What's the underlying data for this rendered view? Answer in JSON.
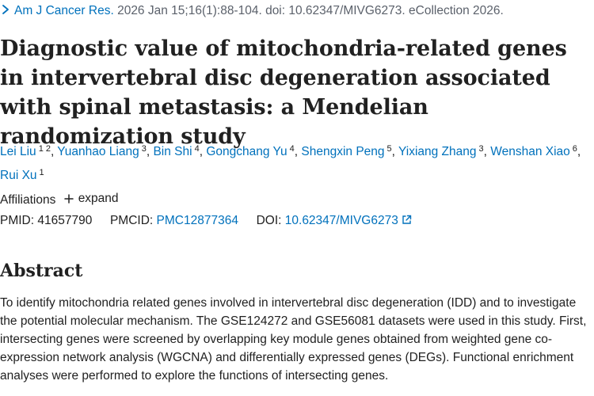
{
  "citation": {
    "journal": "Am J Cancer Res.",
    "details": " 2026 Jan 15;16(1):88-104. doi: 10.62347/MIVG6273. eCollection 2026."
  },
  "article": {
    "title": "Diagnostic value of mitochondria-related genes in intervertebral disc degeneration associated with spinal metastasis: a Mendelian randomization study"
  },
  "authors": [
    {
      "name": "Lei Liu",
      "affiliations": [
        "1",
        "2"
      ]
    },
    {
      "name": "Yuanhao Liang",
      "affiliations": [
        "3"
      ]
    },
    {
      "name": "Bin Shi",
      "affiliations": [
        "4"
      ]
    },
    {
      "name": "Gongchang Yu",
      "affiliations": [
        "4"
      ]
    },
    {
      "name": "Shengxin Peng",
      "affiliations": [
        "5"
      ]
    },
    {
      "name": "Yixiang Zhang",
      "affiliations": [
        "3"
      ]
    },
    {
      "name": "Wenshan Xiao",
      "affiliations": [
        "6"
      ]
    },
    {
      "name": "Rui Xu",
      "affiliations": [
        "1"
      ]
    }
  ],
  "affiliations": {
    "label": "Affiliations",
    "expand_label": "expand"
  },
  "identifiers": {
    "pmid_label": "PMID:",
    "pmid": "41657790",
    "pmcid_label": "PMCID:",
    "pmcid": "PMC12877364",
    "doi_label": "DOI:",
    "doi": "10.62347/MIVG6273"
  },
  "abstract": {
    "heading": "Abstract",
    "text": "To identify mitochondria related genes involved in intervertebral disc degeneration (IDD) and to investigate the potential molecular mechanism. The GSE124272 and GSE56081 datasets were used in this study. First, intersecting genes were screened by overlapping key module genes obtained from weighted gene co-expression network analysis (WGCNA) and differentially expressed genes (DEGs). Functional enrichment analyses were performed to explore the functions of intersecting genes."
  },
  "icons": {
    "citation_toggle": "chevron-right-icon",
    "expand": "plus-icon",
    "doi_external": "external-link-icon"
  },
  "colors": {
    "link": "#0071bc",
    "text": "#212121",
    "muted": "#5b616b"
  }
}
